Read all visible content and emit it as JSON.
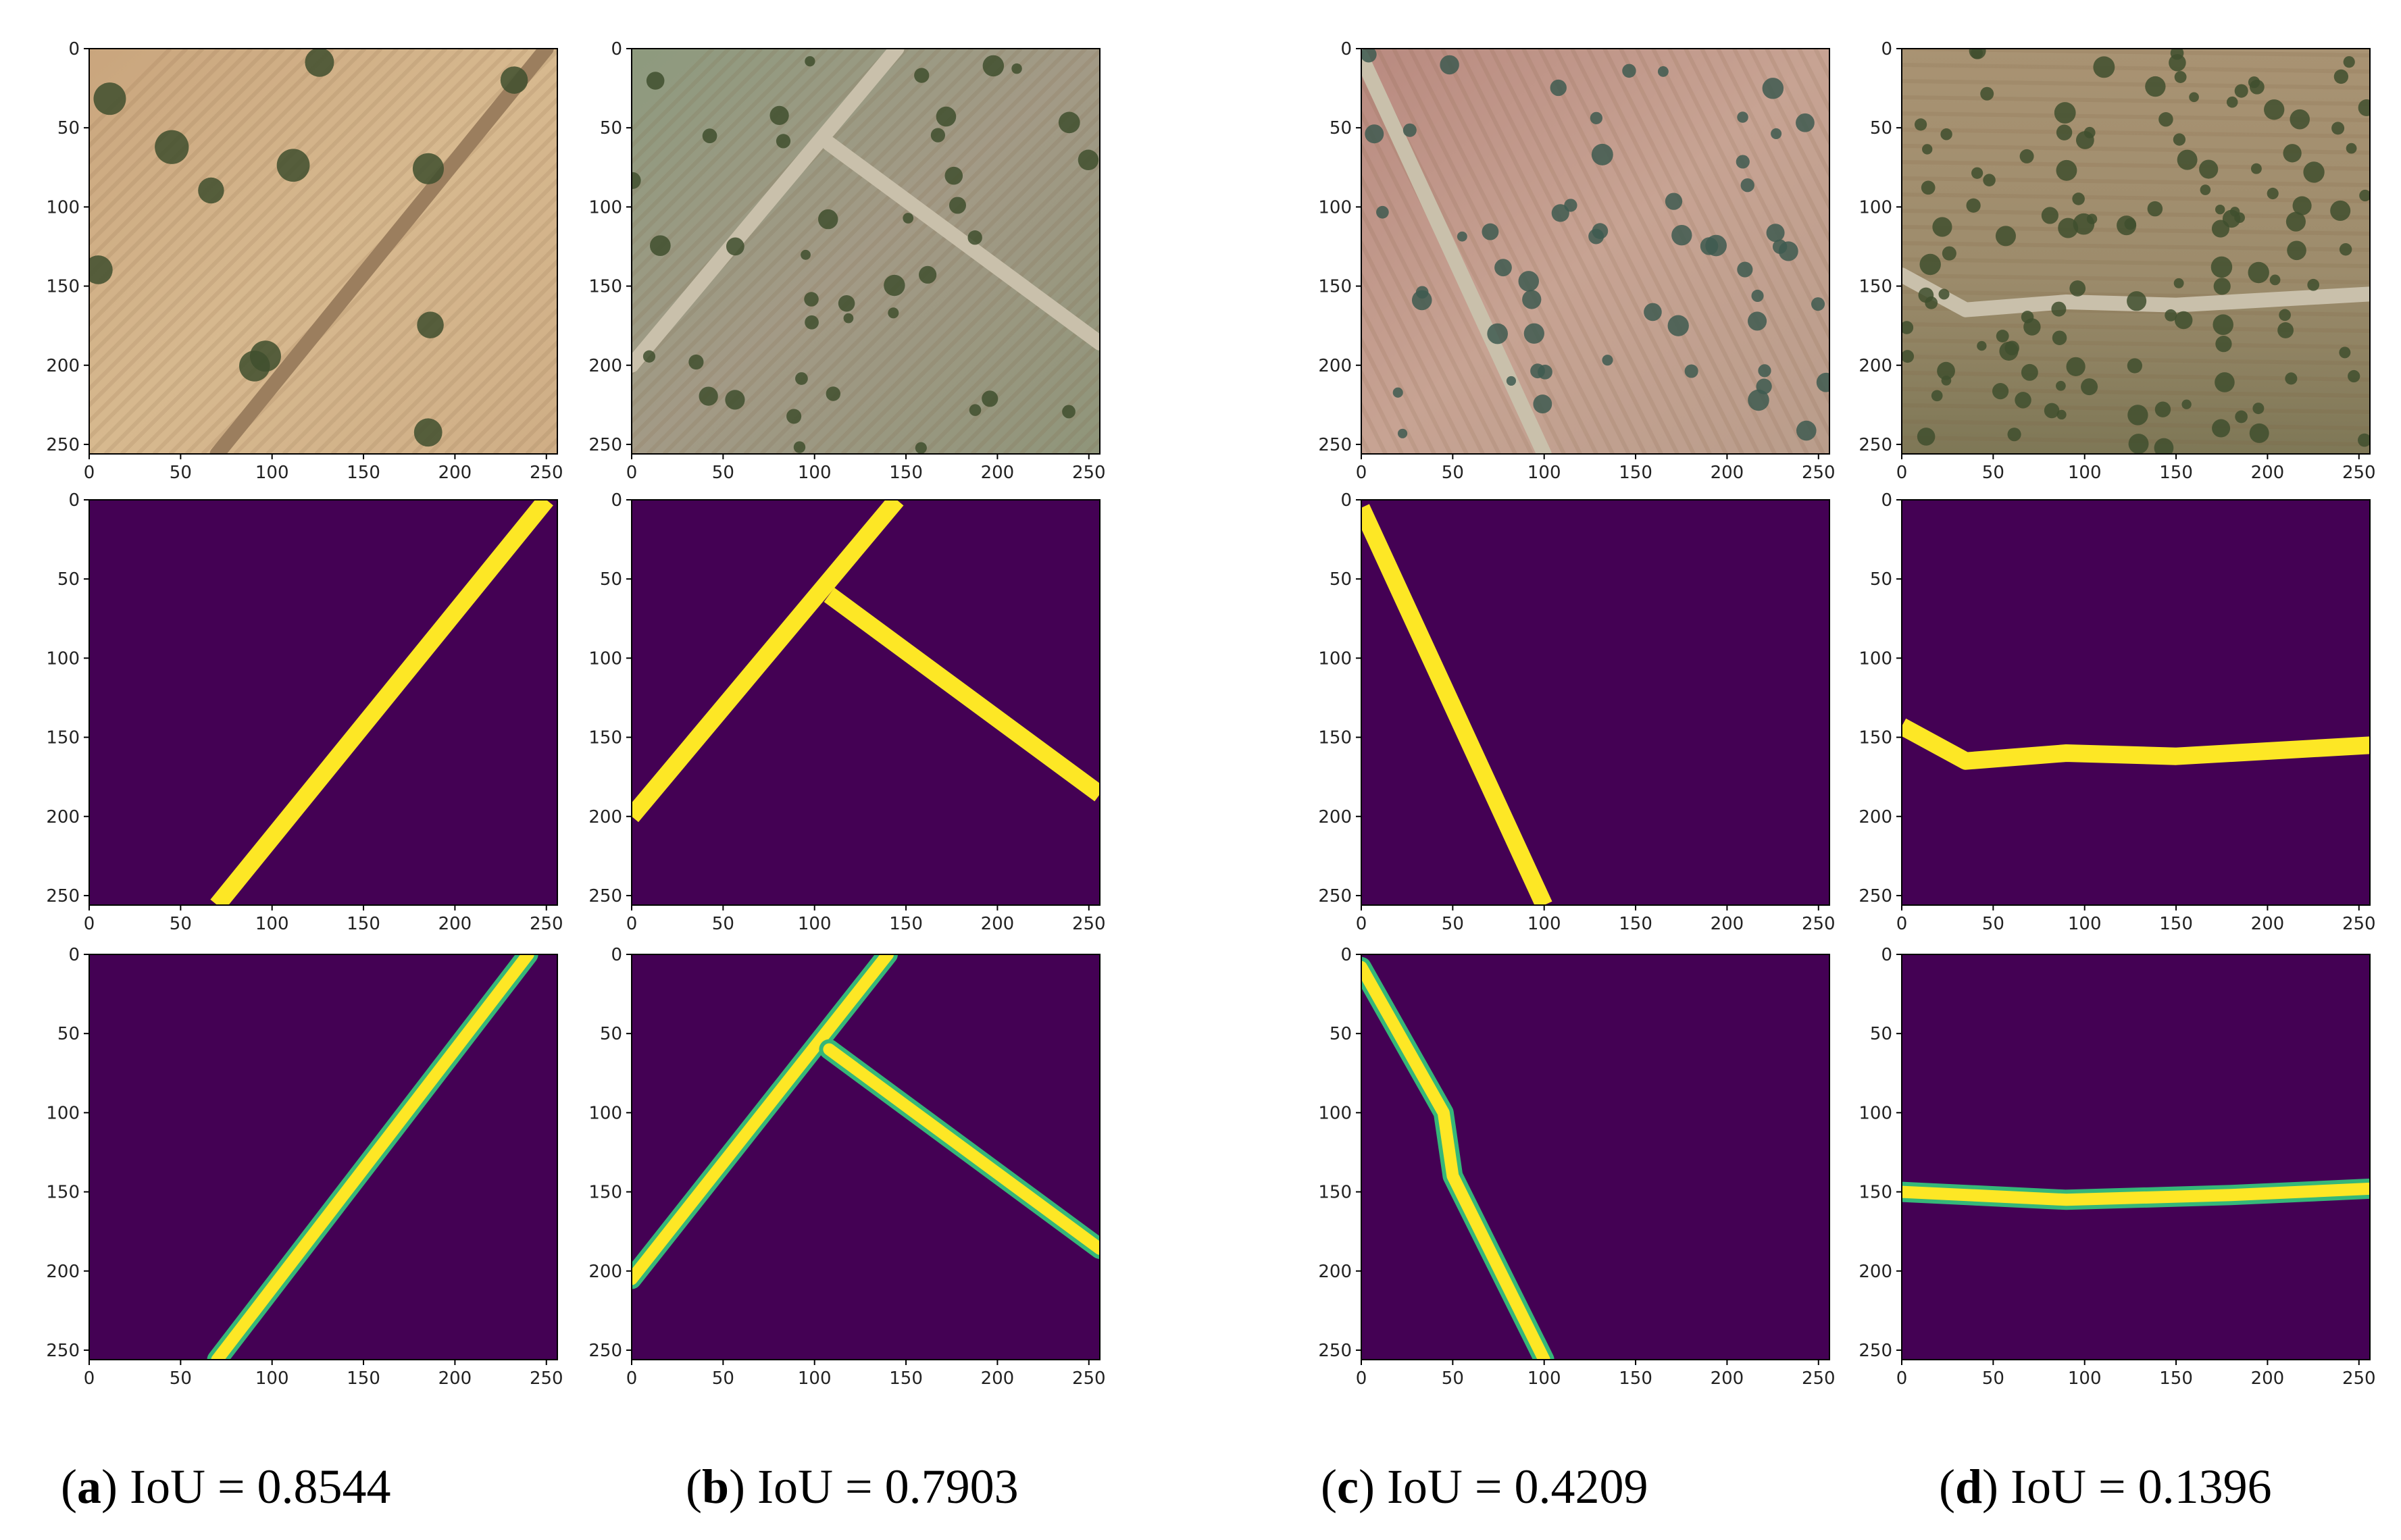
{
  "panels": [
    {
      "id": "a",
      "letter": "a",
      "caption_rest": " IoU = 0.8544"
    },
    {
      "id": "b",
      "letter": "b",
      "caption_rest": " IoU = 0.7903"
    },
    {
      "id": "c",
      "letter": "c",
      "caption_rest": " IoU = 0.4209"
    },
    {
      "id": "d",
      "letter": "d",
      "caption_rest": " IoU = 0.1396"
    }
  ],
  "axis": {
    "ticks": [
      "0",
      "50",
      "100",
      "150",
      "200",
      "250"
    ],
    "tick_values": [
      0,
      50,
      100,
      150,
      200,
      250
    ],
    "range": [
      0,
      256
    ]
  },
  "rows": [
    "aerial-image",
    "ground-truth-mask",
    "predicted-mask"
  ],
  "colors": {
    "mask_background": "#440154",
    "mask_road": "#fde725",
    "mask_edge": "#35b779",
    "mask_faint": "#31688e"
  },
  "masks": {
    "a": {
      "gt": [
        [
          [
            70,
            256
          ],
          [
            250,
            0
          ]
        ]
      ],
      "pred": [
        [
          [
            70,
            256
          ],
          [
            240,
            0
          ]
        ]
      ]
    },
    "b": {
      "gt": [
        [
          [
            0,
            200
          ],
          [
            145,
            0
          ]
        ],
        [
          [
            108,
            60
          ],
          [
            256,
            186
          ]
        ]
      ],
      "pred": [
        [
          [
            0,
            205
          ],
          [
            140,
            0
          ]
        ],
        [
          [
            108,
            60
          ],
          [
            256,
            186
          ]
        ]
      ]
    },
    "c": {
      "gt": [
        [
          [
            0,
            5
          ],
          [
            100,
            256
          ]
        ]
      ],
      "pred": [
        [
          [
            0,
            8
          ],
          [
            45,
            100
          ],
          [
            50,
            140
          ],
          [
            100,
            256
          ]
        ]
      ]
    },
    "d": {
      "gt": [
        [
          [
            0,
            143
          ],
          [
            35,
            165
          ],
          [
            90,
            160
          ],
          [
            150,
            162
          ],
          [
            256,
            155
          ]
        ]
      ],
      "pred": [
        [
          [
            0,
            150
          ],
          [
            90,
            155
          ],
          [
            180,
            152
          ],
          [
            256,
            148
          ]
        ]
      ]
    }
  }
}
